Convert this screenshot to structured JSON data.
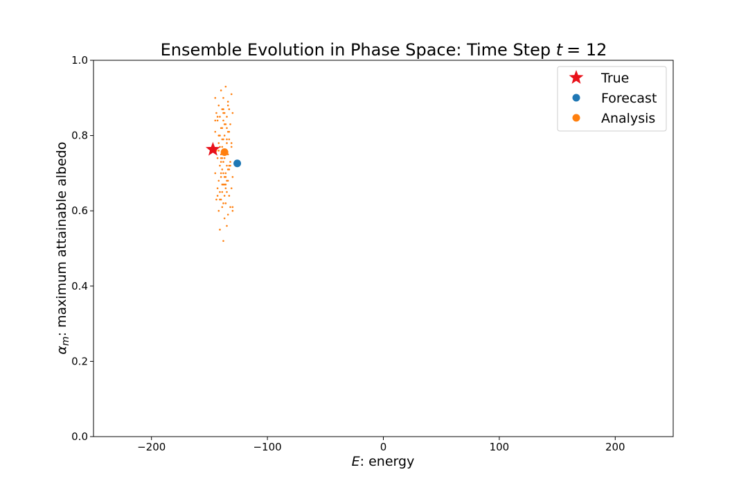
{
  "chart_data": {
    "type": "scatter",
    "title_prefix": "Ensemble Evolution in Phase Space: Time Step ",
    "title_var": "t",
    "title_value": "= 12",
    "xlabel_var": "E",
    "xlabel_rest": ": energy",
    "ylabel_var": "α",
    "ylabel_sub": "m",
    "ylabel_rest": ": maximum attainable albedo",
    "xlim": [
      -250,
      250
    ],
    "ylim": [
      0.0,
      1.0
    ],
    "xticks": [
      -200,
      -100,
      0,
      100,
      200
    ],
    "xtick_labels": [
      "−200",
      "−100",
      "0",
      "100",
      "200"
    ],
    "yticks": [
      0.0,
      0.2,
      0.4,
      0.6,
      0.8,
      1.0
    ],
    "ytick_labels": [
      "0.0",
      "0.2",
      "0.4",
      "0.6",
      "0.8",
      "1.0"
    ],
    "grid": false,
    "legend_position": "top-right",
    "legend": [
      {
        "label": "True",
        "marker": "star",
        "color": "#e8111a"
      },
      {
        "label": "Forecast",
        "marker": "circle",
        "color": "#1f77b4"
      },
      {
        "label": "Analysis",
        "marker": "circle",
        "color": "#ff7f0e"
      }
    ],
    "true_point": {
      "x": -147,
      "y": 0.763
    },
    "forecast_mean": {
      "x": -126,
      "y": 0.726
    },
    "analysis_mean": {
      "x": -137,
      "y": 0.756
    },
    "analysis_ensemble": {
      "color": "#ff7f0e",
      "x": [
        -140,
        -136,
        -145,
        -131,
        -138,
        -142,
        -134,
        -139,
        -144,
        -133,
        -137,
        -141,
        -135,
        -130,
        -143,
        -138,
        -136,
        -140,
        -132,
        -139,
        -145,
        -134,
        -137,
        -141,
        -133,
        -138,
        -135,
        -142,
        -139,
        -131,
        -144,
        -136,
        -140,
        -134,
        -137,
        -143,
        -132,
        -138,
        -135,
        -141,
        -139,
        -133,
        -136,
        -145,
        -130,
        -140,
        -137,
        -142,
        -134,
        -138,
        -136,
        -139,
        -131,
        -143,
        -135,
        -141,
        -137,
        -133,
        -140,
        -144,
        -138,
        -136,
        -132,
        -139,
        -142,
        -134,
        -137,
        -130,
        -141,
        -135,
        -138,
        -143,
        -136,
        -140,
        -133,
        -139,
        -137,
        -131,
        -142,
        -135,
        -145,
        -138,
        -134,
        -140,
        -136,
        -141,
        -139,
        -133,
        -137,
        -143,
        -135,
        -138,
        -132,
        -140,
        -136,
        -134,
        -142,
        -139,
        -137,
        -141,
        -130,
        -135,
        -138
      ],
      "y": [
        0.92,
        0.93,
        0.9,
        0.91,
        0.9,
        0.88,
        0.89,
        0.87,
        0.86,
        0.87,
        0.86,
        0.85,
        0.85,
        0.86,
        0.84,
        0.84,
        0.83,
        0.82,
        0.83,
        0.82,
        0.81,
        0.81,
        0.8,
        0.8,
        0.79,
        0.79,
        0.78,
        0.78,
        0.77,
        0.77,
        0.76,
        0.76,
        0.75,
        0.75,
        0.74,
        0.74,
        0.73,
        0.73,
        0.72,
        0.72,
        0.71,
        0.71,
        0.7,
        0.7,
        0.69,
        0.69,
        0.69,
        0.68,
        0.68,
        0.67,
        0.67,
        0.67,
        0.66,
        0.66,
        0.65,
        0.65,
        0.64,
        0.64,
        0.63,
        0.63,
        0.62,
        0.62,
        0.61,
        0.61,
        0.6,
        0.59,
        0.58,
        0.6,
        0.55,
        0.56,
        0.52,
        0.64,
        0.66,
        0.7,
        0.72,
        0.74,
        0.76,
        0.78,
        0.8,
        0.82,
        0.84,
        0.86,
        0.88,
        0.73,
        0.75,
        0.77,
        0.79,
        0.81,
        0.83,
        0.85,
        0.68,
        0.7,
        0.72,
        0.74,
        0.69,
        0.71,
        0.76,
        0.65,
        0.67,
        0.63,
        0.61,
        0.79,
        0.87
      ]
    }
  }
}
